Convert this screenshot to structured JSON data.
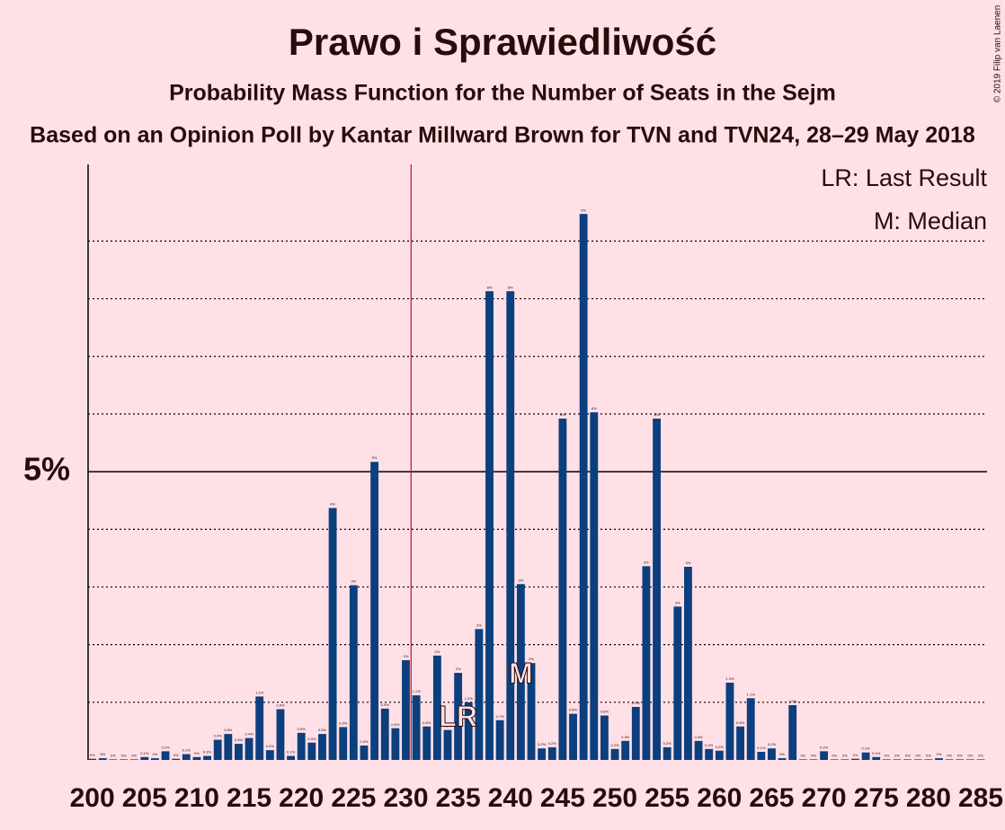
{
  "chart_data": {
    "type": "bar",
    "title": "Prawo i Sprawiedliwość",
    "subtitle": "Probability Mass Function for the Number of Seats in the Sejm",
    "caption": "Based on an Opinion Poll by Kantar Millward Brown for TVN and TVN24, 28–29 May 2018",
    "copyright": "© 2019 Filip van Laenen",
    "x": [
      200,
      201,
      202,
      203,
      204,
      205,
      206,
      207,
      208,
      209,
      210,
      211,
      212,
      213,
      214,
      215,
      216,
      217,
      218,
      219,
      220,
      221,
      222,
      223,
      224,
      225,
      226,
      227,
      228,
      229,
      230,
      231,
      232,
      233,
      234,
      235,
      236,
      237,
      238,
      239,
      240,
      241,
      242,
      243,
      244,
      245,
      246,
      247,
      248,
      249,
      250,
      251,
      252,
      253,
      254,
      255,
      256,
      257,
      258,
      259,
      260,
      261,
      262,
      263,
      264,
      265,
      266,
      267,
      268,
      269,
      270,
      271,
      272,
      273,
      274,
      275,
      276,
      277,
      278,
      279,
      280,
      281,
      282,
      283,
      284,
      285
    ],
    "values": [
      0.02,
      0.03,
      0.01,
      0.01,
      0.01,
      0.05,
      0.03,
      0.15,
      0.02,
      0.1,
      0.05,
      0.07,
      0.35,
      0.45,
      0.28,
      0.38,
      1.1,
      0.17,
      0.88,
      0.07,
      0.47,
      0.3,
      0.45,
      4.37,
      0.57,
      3.03,
      0.25,
      5.17,
      0.89,
      0.55,
      1.73,
      1.12,
      0.58,
      1.81,
      0.52,
      1.51,
      1.0,
      2.27,
      8.13,
      0.69,
      8.13,
      3.05,
      1.68,
      0.2,
      0.22,
      5.92,
      0.8,
      9.47,
      6.03,
      0.77,
      0.19,
      0.33,
      0.92,
      3.36,
      5.92,
      0.22,
      2.66,
      3.35,
      0.33,
      0.19,
      0.16,
      1.34,
      0.58,
      1.07,
      0.14,
      0.2,
      0.03,
      0.95,
      0.01,
      0.01,
      0.15,
      0.01,
      0.01,
      0.02,
      0.13,
      0.05,
      0.01,
      0.01,
      0.01,
      0.01,
      0.01,
      0.03,
      0.01,
      0.01,
      0.01,
      0.01
    ],
    "value_labels": [
      "0%",
      "0%",
      "0%",
      "0%",
      "0%",
      "0.1%",
      "0%",
      "0.2%",
      "0%",
      "0.1%",
      "0%",
      "0.1%",
      "0.4%",
      "0.5%",
      "0.3%",
      "0.4%",
      "1.1%",
      "0.2%",
      "0.9%",
      "0.1%",
      "0.5%",
      "0.3%",
      "0.5%",
      "4%",
      "0.6%",
      "3%",
      "0.3%",
      "5%",
      "0.9%",
      "0.6%",
      "2%",
      "1.1%",
      "0.6%",
      "2%",
      "0.5%",
      "2%",
      "1.0%",
      "2%",
      "8%",
      "0.7%",
      "8%",
      "3%",
      "2%",
      "0.2%",
      "0.2%",
      "6%",
      "0.8%",
      "9%",
      "6%",
      "0.8%",
      "0.2%",
      "0.3%",
      "0.9%",
      "3%",
      "6%",
      "0.2%",
      "3%",
      "3%",
      "0.3%",
      "0.2%",
      "0.2%",
      "1.3%",
      "0.6%",
      "1.1%",
      "0.1%",
      "0.2%",
      "0%",
      "1.0%",
      "0%",
      "0%",
      "0.2%",
      "0%",
      "0%",
      "0%",
      "0.1%",
      "0.1%",
      "0%",
      "0%",
      "0%",
      "0%",
      "0%",
      "0%",
      "0%",
      "0%",
      "0%",
      "0%"
    ],
    "color": "#0b3f7e",
    "xlim": [
      199.6,
      285.6
    ],
    "xticks": [
      200,
      205,
      210,
      215,
      220,
      225,
      230,
      235,
      240,
      245,
      250,
      255,
      260,
      265,
      270,
      275,
      280,
      285
    ],
    "ylim": [
      0,
      10.33
    ],
    "yticks": [
      {
        "value": 5,
        "label": "5%"
      }
    ],
    "minor_yticks": [
      1,
      2,
      3,
      4,
      6,
      7,
      8,
      9
    ],
    "majority_line": 230.5,
    "last_result": {
      "seat": 235,
      "label": "LR"
    },
    "median": {
      "seat": 241,
      "label": "M"
    },
    "legend": [
      "LR: Last Result",
      "M: Median"
    ]
  }
}
